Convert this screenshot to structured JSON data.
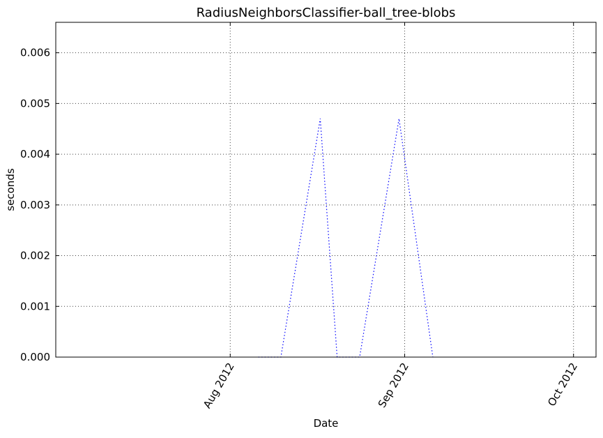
{
  "chart_data": {
    "type": "line",
    "title": "RadiusNeighborsClassifier-ball_tree-blobs",
    "xlabel": "Date",
    "ylabel": "seconds",
    "xlim": [
      "2012-07-01",
      "2012-10-05"
    ],
    "ylim": [
      0,
      0.0066
    ],
    "x_ticks": [
      {
        "date": "2012-08-01",
        "label": "Aug 2012"
      },
      {
        "date": "2012-09-01",
        "label": "Sep 2012"
      },
      {
        "date": "2012-10-01",
        "label": "Oct 2012"
      }
    ],
    "y_ticks": [
      {
        "value": 0.0,
        "label": "0.000"
      },
      {
        "value": 0.001,
        "label": "0.001"
      },
      {
        "value": 0.002,
        "label": "0.002"
      },
      {
        "value": 0.003,
        "label": "0.003"
      },
      {
        "value": 0.004,
        "label": "0.004"
      },
      {
        "value": 0.005,
        "label": "0.005"
      },
      {
        "value": 0.006,
        "label": "0.006"
      }
    ],
    "grid": true,
    "series": [
      {
        "color": "#0000ff",
        "style": "dotted",
        "points": [
          {
            "x": "2012-08-06",
            "y": 0.0
          },
          {
            "x": "2012-08-10",
            "y": 0.0
          },
          {
            "x": "2012-08-17",
            "y": 0.0047
          },
          {
            "x": "2012-08-20",
            "y": 0.0
          },
          {
            "x": "2012-08-24",
            "y": 0.0
          },
          {
            "x": "2012-08-31",
            "y": 0.0047
          },
          {
            "x": "2012-09-06",
            "y": 0.0
          }
        ]
      }
    ]
  }
}
